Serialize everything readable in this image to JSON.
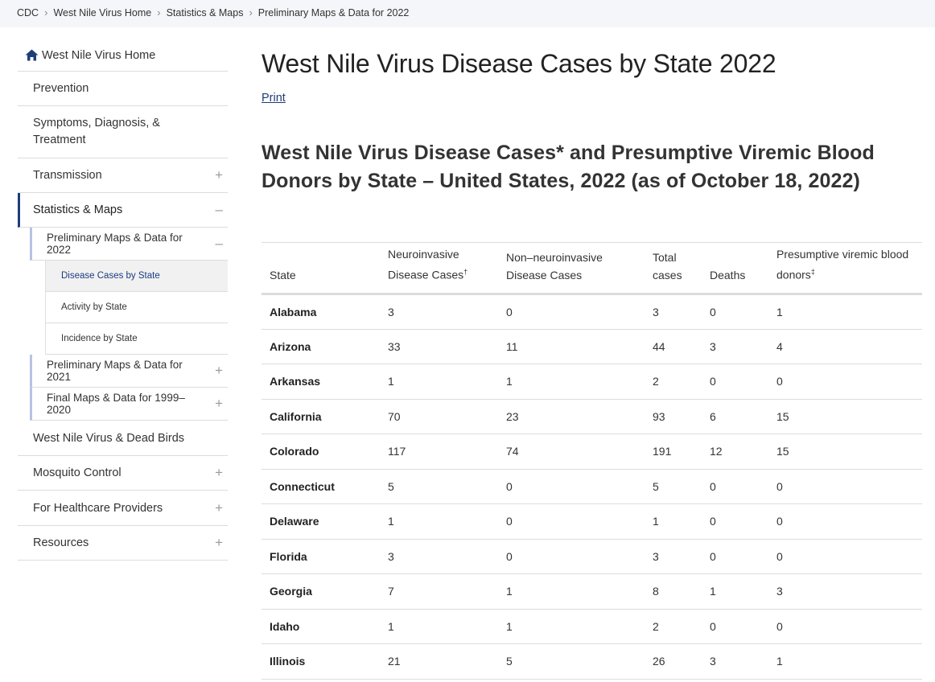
{
  "breadcrumb": [
    "CDC",
    "West Nile Virus Home",
    "Statistics & Maps",
    "Preliminary Maps & Data for 2022"
  ],
  "sidebar": {
    "home": "West Nile Virus Home",
    "items": [
      {
        "label": "Prevention",
        "toggle": ""
      },
      {
        "label": "Symptoms, Diagnosis, & Treatment",
        "toggle": ""
      },
      {
        "label": "Transmission",
        "toggle": "+"
      },
      {
        "label": "Statistics & Maps",
        "toggle": "–"
      },
      {
        "label": "Preliminary Maps & Data for 2022",
        "toggle": "–"
      },
      {
        "label": "Disease Cases by State",
        "toggle": ""
      },
      {
        "label": "Activity by State",
        "toggle": ""
      },
      {
        "label": "Incidence by State",
        "toggle": ""
      },
      {
        "label": "Preliminary Maps & Data for 2021",
        "toggle": "+"
      },
      {
        "label": "Final Maps & Data for 1999–2020",
        "toggle": "+"
      },
      {
        "label": "West Nile Virus & Dead Birds",
        "toggle": ""
      },
      {
        "label": "Mosquito Control",
        "toggle": "+"
      },
      {
        "label": "For Healthcare Providers",
        "toggle": "+"
      },
      {
        "label": "Resources",
        "toggle": "+"
      }
    ]
  },
  "main": {
    "title": "West Nile Virus Disease Cases by State 2022",
    "print": "Print",
    "subtitle": "West Nile Virus Disease Cases* and Presumptive Viremic Blood Donors by State – United States, 2022 (as of October 18, 2022)"
  },
  "table": {
    "headers": [
      {
        "label": "State",
        "mark": ""
      },
      {
        "label": "Neuroinvasive Disease Cases",
        "mark": "†"
      },
      {
        "label": "Non–neuroinvasive Disease Cases",
        "mark": ""
      },
      {
        "label": "Total cases",
        "mark": ""
      },
      {
        "label": "Deaths",
        "mark": ""
      },
      {
        "label": "Presumptive viremic blood donors",
        "mark": "‡"
      }
    ],
    "rows": [
      [
        "Alabama",
        "3",
        "0",
        "3",
        "0",
        "1"
      ],
      [
        "Arizona",
        "33",
        "11",
        "44",
        "3",
        "4"
      ],
      [
        "Arkansas",
        "1",
        "1",
        "2",
        "0",
        "0"
      ],
      [
        "California",
        "70",
        "23",
        "93",
        "6",
        "15"
      ],
      [
        "Colorado",
        "117",
        "74",
        "191",
        "12",
        "15"
      ],
      [
        "Connecticut",
        "5",
        "0",
        "5",
        "0",
        "0"
      ],
      [
        "Delaware",
        "1",
        "0",
        "1",
        "0",
        "0"
      ],
      [
        "Florida",
        "3",
        "0",
        "3",
        "0",
        "0"
      ],
      [
        "Georgia",
        "7",
        "1",
        "8",
        "1",
        "3"
      ],
      [
        "Idaho",
        "1",
        "1",
        "2",
        "0",
        "0"
      ],
      [
        "Illinois",
        "21",
        "5",
        "26",
        "3",
        "1"
      ]
    ]
  },
  "colors": {
    "accent": "#1f3d7a",
    "link": "#1f3b7a",
    "breadcrumb_bg": "#f5f6f9"
  },
  "icons": {
    "home": "home-icon"
  }
}
